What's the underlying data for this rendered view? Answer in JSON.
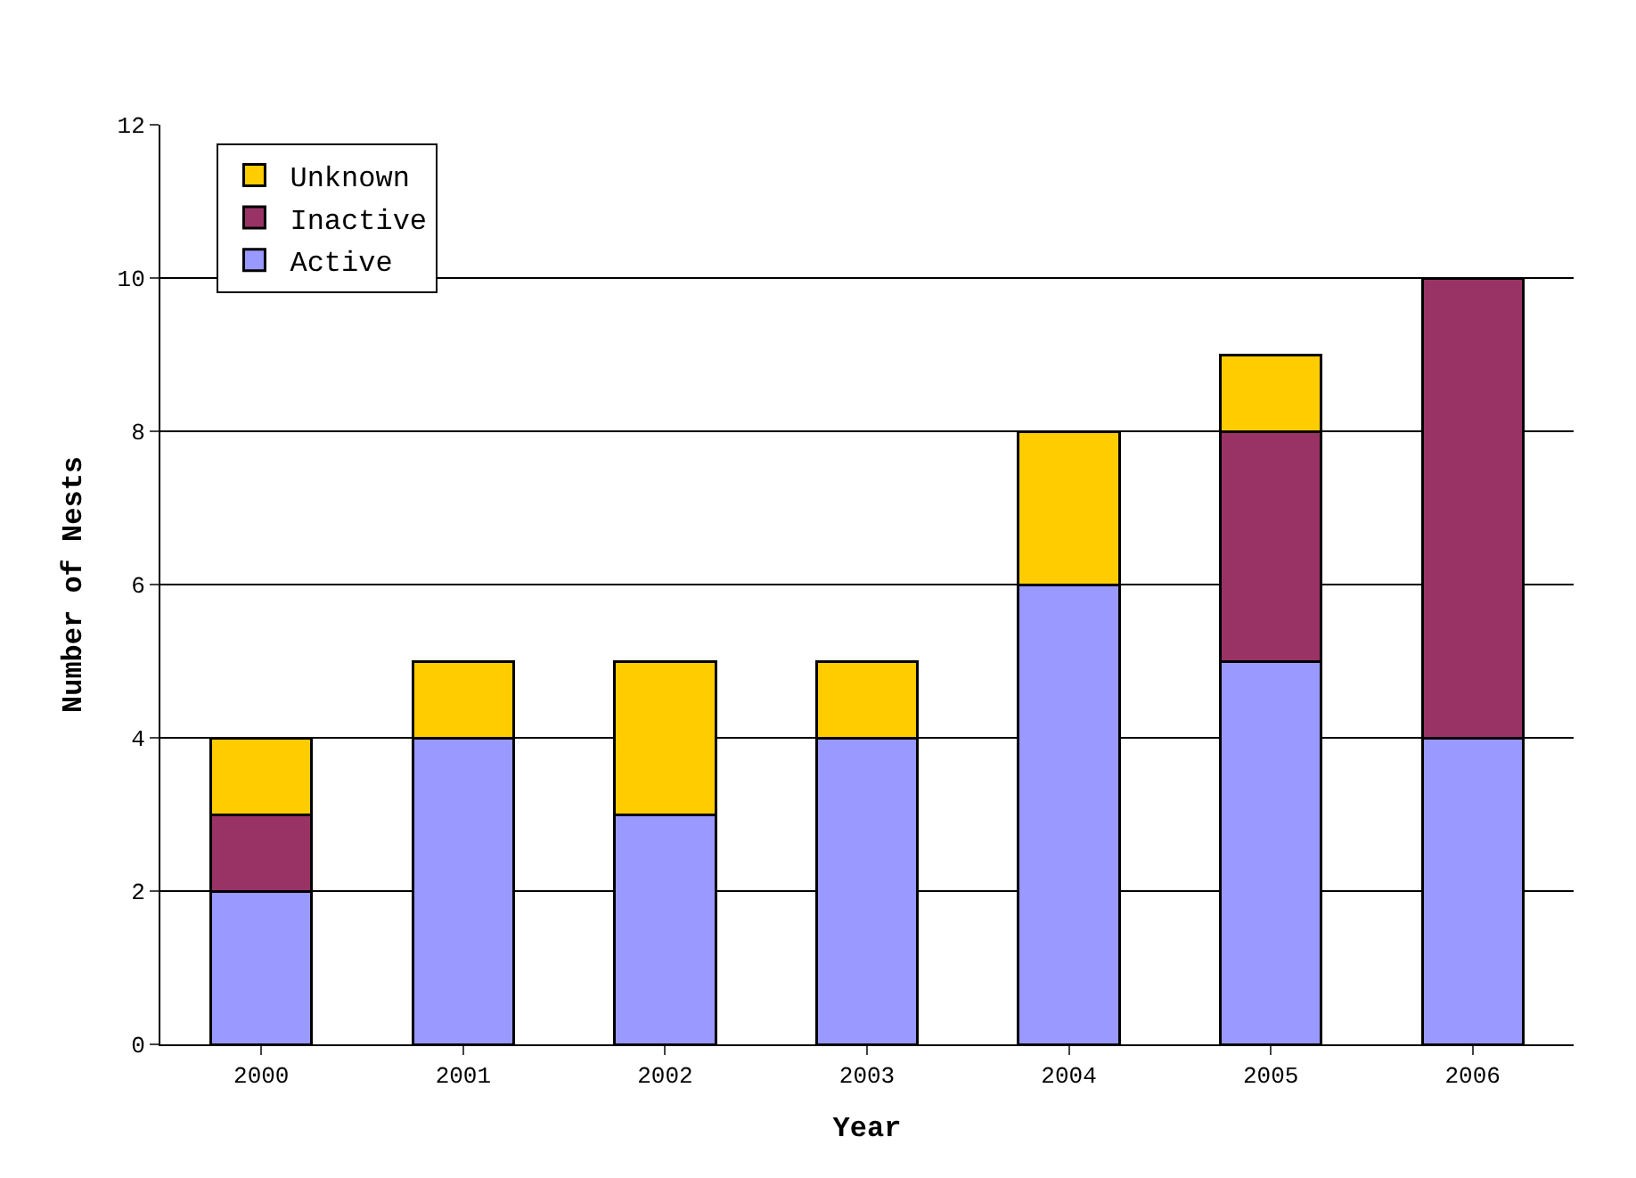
{
  "chart_data": {
    "type": "bar",
    "stacked": true,
    "xlabel": "Year",
    "ylabel": "Number of Nests",
    "categories": [
      "2000",
      "2001",
      "2002",
      "2003",
      "2004",
      "2005",
      "2006"
    ],
    "series": [
      {
        "name": "Active",
        "color": "#9999ff",
        "values": [
          2,
          4,
          3,
          4,
          6,
          5,
          4
        ]
      },
      {
        "name": "Inactive",
        "color": "#993366",
        "values": [
          1,
          null,
          null,
          null,
          null,
          3,
          6
        ]
      },
      {
        "name": "Unknown",
        "color": "#ffcc00",
        "values": [
          1,
          1,
          2,
          1,
          2,
          1,
          null
        ]
      }
    ],
    "ylim": [
      0,
      12
    ],
    "yticks": [
      0,
      2,
      4,
      6,
      8,
      10,
      12
    ],
    "grid": "y",
    "legend": "top left"
  }
}
